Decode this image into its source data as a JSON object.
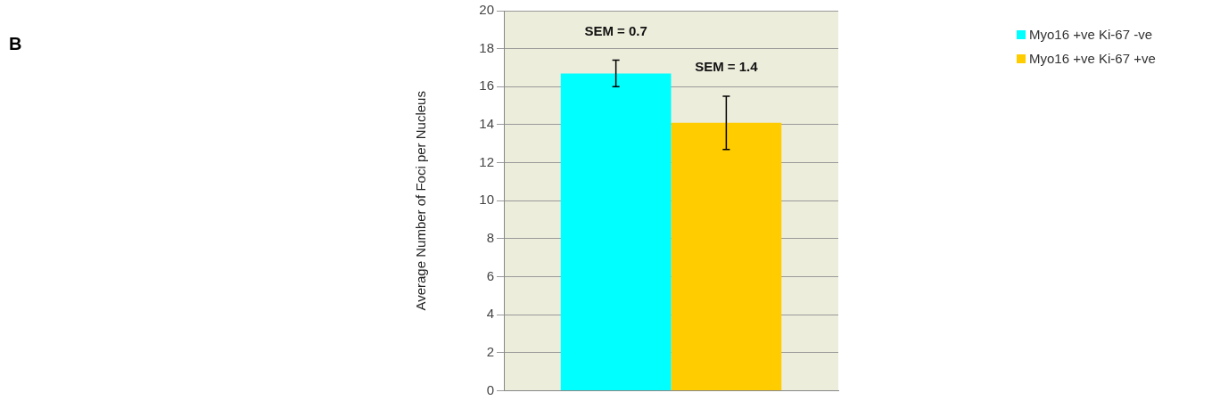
{
  "chart_data": {
    "type": "bar",
    "title": "B",
    "ylabel": "Average Number of Foci per Nucleus",
    "categories": [
      null
    ],
    "series": [
      {
        "name": "Myo16 +ve Ki-67 -ve",
        "color": "#00ffff",
        "values": [
          16.7
        ],
        "errors": [
          0.7
        ]
      },
      {
        "name": "Myo16 +ve Ki-67 +ve",
        "color": "#ffcc00",
        "values": [
          14.1
        ],
        "errors": [
          1.4
        ]
      }
    ],
    "annotations": [
      "SEM = 0.7",
      "SEM = 1.4"
    ],
    "ylim": [
      0,
      20
    ],
    "yticks": [
      0,
      2,
      4,
      6,
      8,
      10,
      12,
      14,
      16,
      18,
      20
    ],
    "grid": "y",
    "legend": "top right"
  }
}
